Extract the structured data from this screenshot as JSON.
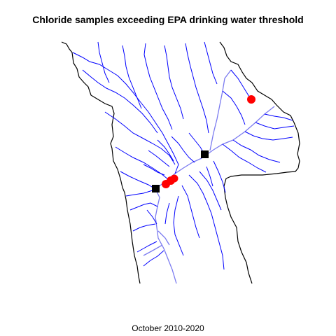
{
  "title": "Chloride samples exceeding EPA drinking water threshold",
  "caption": "October 2010-2020",
  "colors": {
    "boundary": "#000000",
    "streams": "#0000ff",
    "main_river": "#7b7bf0",
    "exceedance_sample": "#ff0000",
    "station": "#000000"
  },
  "legend": {
    "exceedance_sample_marker": "red circle",
    "station_marker": "black square"
  }
}
